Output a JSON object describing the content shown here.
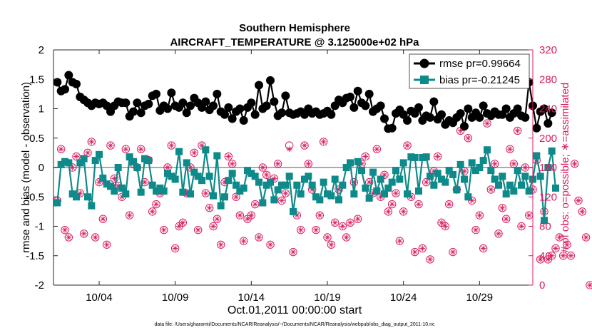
{
  "colors": {
    "rmse": "#000000",
    "bias": "#0e8a8a",
    "obs": "#d81b60",
    "zero_line": "#aaaaaa",
    "axis": "#262626"
  },
  "chart_data": {
    "type": "line",
    "title": "Southern Hemisphere",
    "subtitle": "AIRCRAFT_TEMPERATURE @ 3.125000e+02 hPa",
    "xlabel": "Oct.01,2011 00:00:00 start",
    "ylabel": "rmse and bias (model - observation)",
    "y2label": "# of obs: o=possible; ∗=assimilated",
    "xlim": [
      1,
      32.5
    ],
    "ylim": [
      -2,
      2
    ],
    "y2lim": [
      0,
      320
    ],
    "xticks": [
      4,
      9,
      14,
      19,
      24,
      29
    ],
    "xticklabels": [
      "10/04",
      "10/09",
      "10/14",
      "10/19",
      "10/24",
      "10/29"
    ],
    "yticks": [
      -2,
      -1.5,
      -1,
      -0.5,
      0,
      0.5,
      1,
      1.5,
      2
    ],
    "yticklabels": [
      "-2",
      "-1.5",
      "-1",
      "-0.5",
      "0",
      "0.5",
      "1",
      "1.5",
      "2"
    ],
    "y2ticks": [
      0,
      40,
      80,
      120,
      160,
      200,
      240,
      280,
      320
    ],
    "y2ticklabels": [
      "0",
      "40",
      "80",
      "120",
      "160",
      "200",
      "240",
      "280",
      "320"
    ],
    "legend": {
      "position": "top-right",
      "entries": [
        "rmse pr=0.99664",
        "bias pr=-0.21245"
      ]
    },
    "footnote": "data file: /Users/gharamti/Documents/NCAR/Reanalysis/~/Documents/NCAR/Reanalysis/webpub/obs_diag_output_2011-10.nc",
    "x_start": 1.25,
    "x_step": 0.25,
    "series": [
      {
        "name": "rmse pr=0.99664",
        "axis": "left",
        "values": [
          1.45,
          1.3,
          1.33,
          1.57,
          1.45,
          1.42,
          1.2,
          1.15,
          1.1,
          1.05,
          1.1,
          1.08,
          1.1,
          1.05,
          0.95,
          1.05,
          1.12,
          1.1,
          1.1,
          0.87,
          0.95,
          1.1,
          0.93,
          1.05,
          1.08,
          1.22,
          1.25,
          0.97,
          1.05,
          1.0,
          1.27,
          1.05,
          1.02,
          1.1,
          0.93,
          1.05,
          1.18,
          1.1,
          1.02,
          1.12,
          0.98,
          1.05,
          1.25,
          0.95,
          0.9,
          1.02,
          0.83,
          0.95,
          1.0,
          0.8,
          1.02,
          1.1,
          0.9,
          1.4,
          1.0,
          1.05,
          1.48,
          1.12,
          0.88,
          0.93,
          1.22,
          0.93,
          0.9,
          0.92,
          0.95,
          0.9,
          1.0,
          0.92,
          0.95,
          0.9,
          0.92,
          0.96,
          0.9,
          1.05,
          1.15,
          1.1,
          1.18,
          1.2,
          1.02,
          1.3,
          1.1,
          1.05,
          1.25,
          0.95,
          1.0,
          1.05,
          0.83,
          0.66,
          0.67,
          0.92,
          0.98,
          0.9,
          0.8,
          0.96,
          0.92,
          1.02,
          0.8,
          0.88,
          0.85,
          1.12,
          0.82,
          0.9,
          0.73,
          0.8,
          0.76,
          0.85,
          0.92,
          0.7,
          1.0,
          0.85,
          0.93,
          0.85,
          1.05,
          0.92,
          0.88,
          0.95,
          0.9,
          0.9,
          1.0,
          0.85,
          0.92,
          1.0,
          0.88,
          0.85,
          1.45,
          1.05,
          0.67,
          0.95,
          1.0,
          0.75,
          0.93
        ]
      },
      {
        "name": "bias pr=-0.21245",
        "axis": "left",
        "values": [
          -0.6,
          0.05,
          0.1,
          0.08,
          -0.45,
          -0.5,
          0.08,
          0.15,
          -0.5,
          -0.65,
          0.12,
          0.22,
          -0.18,
          -0.28,
          -0.32,
          -0.4,
          0.0,
          -0.35,
          -0.45,
          0.18,
          0.1,
          0.0,
          -0.42,
          0.15,
          0.12,
          -0.3,
          -0.4,
          -0.35,
          -0.4,
          -0.1,
          -0.15,
          -0.2,
          0.27,
          -0.42,
          0.08,
          -0.45,
          -0.08,
          -0.15,
          -0.22,
          0.3,
          -0.15,
          -0.48,
          0.2,
          -0.65,
          -0.5,
          -0.22,
          -0.1,
          -0.3,
          -0.4,
          -0.35,
          -0.05,
          -0.1,
          -0.15,
          -0.25,
          -0.6,
          -0.3,
          -0.25,
          -0.55,
          -0.38,
          -0.3,
          -0.3,
          -0.15,
          -0.75,
          -0.3,
          -0.45,
          -0.2,
          -0.15,
          -0.3,
          -0.5,
          -0.55,
          -0.25,
          -0.45,
          -0.48,
          -0.2,
          -0.55,
          -0.3,
          0.0,
          0.08,
          -0.45,
          0.1,
          -0.05,
          -0.35,
          -0.52,
          -0.08,
          -0.4,
          -0.2,
          -0.45,
          -0.35,
          -0.25,
          -0.05,
          -0.2,
          0.08,
          -0.45,
          0.18,
          0.17,
          -0.4,
          0.17,
          0.18,
          -0.15,
          -0.3,
          -0.1,
          -0.2,
          -0.25,
          -0.05,
          -0.12,
          -0.38,
          0.05,
          -0.2,
          -0.5,
          0.08,
          -0.05,
          0.0,
          0.12,
          0.3,
          -0.05,
          -0.2,
          -0.3,
          -0.15,
          -0.45,
          -0.3,
          -0.4,
          -0.05,
          -0.3,
          -0.15,
          -0.4,
          -0.2,
          0.2,
          -0.15,
          -0.9,
          0.0,
          0.28,
          -0.35
        ]
      },
      {
        "name": "# obs possible",
        "axis": "right",
        "values": [
          115,
          185,
          75,
          65,
          160,
          175,
          125,
          70,
          180,
          195,
          65,
          140,
          90,
          55,
          190,
          145,
          135,
          120,
          185,
          95,
          165,
          160,
          185,
          140,
          170,
          100,
          110,
          125,
          75,
          160,
          190,
          50,
          80,
          85,
          125,
          160,
          180,
          75,
          190,
          125,
          105,
          80,
          90,
          55,
          140,
          175,
          165,
          120,
          95,
          60,
          90,
          95,
          110,
          65,
          160,
          150,
          55,
          145,
          165,
          115,
          125,
          190,
          45,
          95,
          75,
          190,
          165,
          130,
          75,
          95,
          195,
          65,
          55,
          85,
          130,
          80,
          65,
          85,
          140,
          90,
          165,
          175,
          140,
          125,
          185,
          120,
          150,
          100,
          110,
          125,
          60,
          100,
          190,
          120,
          45,
          110,
          50,
          140,
          35,
          155,
          175,
          85,
          80,
          110,
          45,
          130,
          210,
          155,
          200,
          115,
          75,
          95,
          50,
          220,
          130,
          165,
          70,
          105,
          90,
          185,
          165,
          210,
          80,
          160,
          95,
          130,
          170,
          35,
          100,
          35,
          40,
          50,
          65,
          40,
          55,
          40,
          165,
          115,
          100,
          65,
          0
        ]
      },
      {
        "name": "# obs assimilated",
        "axis": "right",
        "values": [
          115,
          185,
          75,
          65,
          160,
          175,
          125,
          70,
          180,
          195,
          65,
          140,
          90,
          55,
          190,
          145,
          135,
          120,
          185,
          95,
          165,
          160,
          185,
          140,
          170,
          100,
          110,
          125,
          75,
          160,
          190,
          50,
          80,
          85,
          125,
          160,
          180,
          75,
          190,
          125,
          105,
          80,
          90,
          55,
          140,
          175,
          165,
          120,
          95,
          60,
          90,
          95,
          110,
          65,
          160,
          150,
          55,
          145,
          165,
          115,
          125,
          185,
          45,
          95,
          75,
          190,
          165,
          130,
          75,
          95,
          195,
          65,
          55,
          85,
          130,
          80,
          65,
          85,
          140,
          90,
          165,
          175,
          140,
          125,
          185,
          120,
          150,
          100,
          110,
          125,
          60,
          100,
          190,
          120,
          45,
          110,
          50,
          140,
          35,
          155,
          175,
          85,
          80,
          110,
          45,
          130,
          210,
          155,
          200,
          115,
          75,
          95,
          50,
          220,
          130,
          165,
          70,
          105,
          90,
          185,
          165,
          210,
          80,
          160,
          95,
          130,
          170,
          35,
          100,
          35,
          40,
          50,
          65,
          40,
          55,
          40,
          165,
          115,
          100,
          65,
          0
        ]
      }
    ]
  }
}
